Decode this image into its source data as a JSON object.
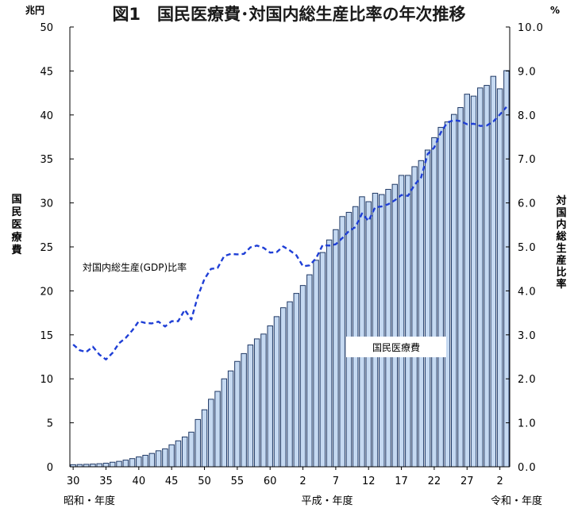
{
  "chart_data": {
    "type": "bar",
    "title": "図1　国民医療費･対国内総生産比率の年次推移",
    "left_unit": "兆円",
    "right_unit": "%",
    "left_axis_label": "国民医療費",
    "right_axis_label": "対国内総生産比率",
    "left_ylim": [
      0,
      50
    ],
    "right_ylim": [
      0.0,
      10.0
    ],
    "left_ticks": [
      "0",
      "5",
      "10",
      "15",
      "20",
      "25",
      "30",
      "35",
      "40",
      "45",
      "50"
    ],
    "right_ticks": [
      "0.0",
      "1.0",
      "2.0",
      "3.0",
      "4.0",
      "5.0",
      "6.0",
      "7.0",
      "8.0",
      "9.0",
      "10.0"
    ],
    "x_tick_labels": [
      {
        "index": 0,
        "label": "30"
      },
      {
        "index": 5,
        "label": "35"
      },
      {
        "index": 10,
        "label": "40"
      },
      {
        "index": 15,
        "label": "45"
      },
      {
        "index": 20,
        "label": "50"
      },
      {
        "index": 25,
        "label": "55"
      },
      {
        "index": 30,
        "label": "60"
      },
      {
        "index": 35,
        "label": "2"
      },
      {
        "index": 40,
        "label": "7"
      },
      {
        "index": 45,
        "label": "12"
      },
      {
        "index": 50,
        "label": "17"
      },
      {
        "index": 55,
        "label": "22"
      },
      {
        "index": 60,
        "label": "27"
      },
      {
        "index": 65,
        "label": "2"
      }
    ],
    "era_labels": [
      "昭和・年度",
      "平成・年度",
      "令和・年度"
    ],
    "grid": false,
    "series": [
      {
        "name": "国民医療費",
        "type": "bar",
        "axis": "left",
        "values": [
          0.24,
          0.26,
          0.28,
          0.31,
          0.35,
          0.41,
          0.52,
          0.62,
          0.76,
          0.93,
          1.12,
          1.31,
          1.52,
          1.82,
          2.04,
          2.5,
          2.95,
          3.39,
          3.94,
          5.38,
          6.48,
          7.68,
          8.57,
          10.0,
          10.9,
          11.98,
          12.87,
          13.85,
          14.54,
          15.09,
          16.02,
          17.07,
          18.08,
          18.76,
          19.71,
          20.61,
          21.83,
          23.48,
          24.36,
          25.79,
          26.96,
          28.45,
          28.93,
          29.58,
          30.7,
          30.14,
          31.1,
          30.95,
          31.54,
          32.11,
          33.13,
          33.13,
          34.12,
          34.81,
          36.01,
          37.42,
          38.59,
          39.21,
          40.06,
          40.84,
          42.36,
          42.14,
          43.07,
          43.36,
          44.39,
          42.97,
          45.04
        ]
      },
      {
        "name": "対国内総生産(GDP)比率",
        "type": "line",
        "axis": "right",
        "values": [
          2.78,
          2.65,
          2.61,
          2.73,
          2.55,
          2.44,
          2.59,
          2.81,
          2.93,
          3.1,
          3.31,
          3.27,
          3.26,
          3.3,
          3.19,
          3.31,
          3.31,
          3.57,
          3.35,
          3.88,
          4.27,
          4.5,
          4.52,
          4.79,
          4.84,
          4.83,
          4.84,
          4.99,
          5.03,
          4.98,
          4.87,
          4.88,
          5.01,
          4.92,
          4.81,
          4.56,
          4.58,
          4.74,
          5.04,
          5.03,
          5.06,
          5.2,
          5.36,
          5.45,
          5.76,
          5.59,
          5.9,
          5.92,
          5.97,
          6.06,
          6.18,
          6.16,
          6.41,
          6.58,
          7.11,
          7.26,
          7.6,
          7.83,
          7.88,
          7.86,
          7.79,
          7.8,
          7.75,
          7.76,
          7.85,
          8.01,
          8.18
        ]
      }
    ],
    "annotations": [
      {
        "text": "対国内総生産(GDP)比率"
      },
      {
        "text": "国民医療費"
      }
    ]
  }
}
